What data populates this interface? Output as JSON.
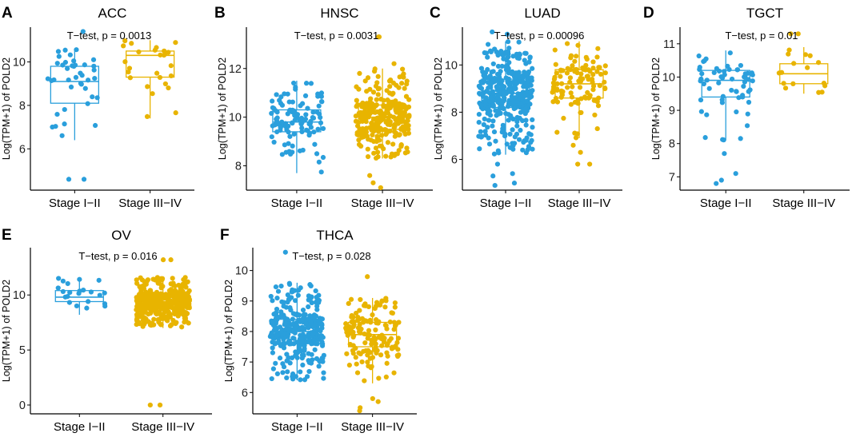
{
  "colors": {
    "stage_early": "#2a9fdc",
    "stage_late": "#e8b400",
    "axis": "#000000"
  },
  "chart_data": [
    {
      "type": "box",
      "panel": "A",
      "title": "ACC",
      "xlabel": "",
      "ylabel": "Log(TPM+1) of POLD2",
      "annotation": "T−test, p = 0.0013",
      "categories": [
        "Stage I−II",
        "Stage III−IV"
      ],
      "ylim": [
        4.1,
        11.6
      ],
      "yticks": [
        6,
        8,
        10
      ],
      "ytick_labels": [
        "6",
        "8",
        "10"
      ],
      "series": [
        {
          "name": "Stage I−II",
          "n": 40,
          "min": 6.4,
          "q1": 8.1,
          "median": 9.1,
          "q3": 9.8,
          "max": 10.6,
          "outliers": [
            4.6,
            4.6,
            11.4
          ]
        },
        {
          "name": "Stage III−IV",
          "n": 26,
          "min": 7.4,
          "q1": 9.3,
          "median": 10.3,
          "q3": 10.5,
          "max": 11.0,
          "outliers": []
        }
      ]
    },
    {
      "type": "box",
      "panel": "B",
      "title": "HNSC",
      "xlabel": "",
      "ylabel": "Log(TPM+1) of POLD2",
      "annotation": "T−test, p = 0.0031",
      "categories": [
        "Stage I−II",
        "Stage III−IV"
      ],
      "ylim": [
        7.0,
        13.7
      ],
      "yticks": [
        8,
        10,
        12
      ],
      "ytick_labels": [
        "8",
        "10",
        "12"
      ],
      "series": [
        {
          "name": "Stage I−II",
          "n": 110,
          "min": 7.7,
          "q1": 9.4,
          "median": 9.8,
          "q3": 10.3,
          "max": 11.5,
          "outliers": []
        },
        {
          "name": "Stage III−IV",
          "n": 300,
          "min": 8.3,
          "q1": 9.5,
          "median": 10.0,
          "q3": 10.5,
          "max": 12.0,
          "outliers": [
            7.3,
            7.1,
            7.6,
            12.2,
            13.3,
            13.3
          ]
        }
      ]
    },
    {
      "type": "box",
      "panel": "C",
      "title": "LUAD",
      "xlabel": "",
      "ylabel": "Log(TPM+1) of POLD2",
      "annotation": "T−test, p = 0.00096",
      "categories": [
        "Stage I−II",
        "Stage III−IV"
      ],
      "ylim": [
        4.7,
        11.6
      ],
      "yticks": [
        6,
        8,
        10
      ],
      "ytick_labels": [
        "6",
        "8",
        "10"
      ],
      "series": [
        {
          "name": "Stage I−II",
          "n": 380,
          "min": 6.2,
          "q1": 8.2,
          "median": 8.8,
          "q3": 9.4,
          "max": 11.0,
          "outliers": [
            4.9,
            5.0,
            5.3,
            5.4,
            5.8,
            11.3,
            11.4
          ]
        },
        {
          "name": "Stage III−IV",
          "n": 110,
          "min": 6.9,
          "q1": 8.6,
          "median": 9.2,
          "q3": 9.8,
          "max": 11.0,
          "outliers": [
            5.8,
            5.8,
            6.3,
            6.6
          ]
        }
      ]
    },
    {
      "type": "box",
      "panel": "D",
      "title": "TGCT",
      "xlabel": "",
      "ylabel": "Log(TPM+1) of POLD2",
      "annotation": "T−test, p = 0.01",
      "categories": [
        "Stage I−II",
        "Stage III−IV"
      ],
      "ylim": [
        6.6,
        11.5
      ],
      "yticks": [
        7,
        8,
        9,
        10,
        11
      ],
      "ytick_labels": [
        "7",
        "8",
        "9",
        "10",
        "11"
      ],
      "series": [
        {
          "name": "Stage I−II",
          "n": 60,
          "min": 8.1,
          "q1": 9.4,
          "median": 9.9,
          "q3": 10.2,
          "max": 10.8,
          "outliers": [
            6.8,
            6.9,
            7.1,
            7.7
          ]
        },
        {
          "name": "Stage III−IV",
          "n": 16,
          "min": 9.5,
          "q1": 9.8,
          "median": 10.1,
          "q3": 10.4,
          "max": 10.9,
          "outliers": [
            11.3,
            11.3
          ]
        }
      ]
    },
    {
      "type": "box",
      "panel": "E",
      "title": "OV",
      "xlabel": "",
      "ylabel": "Log(TPM+1) of POLD2",
      "annotation": "T−test, p = 0.016",
      "categories": [
        "Stage I−II",
        "Stage III−IV"
      ],
      "ylim": [
        -0.8,
        14.3
      ],
      "yticks": [
        0,
        5,
        10
      ],
      "ytick_labels": [
        "0",
        "5",
        "10"
      ],
      "series": [
        {
          "name": "Stage I−II",
          "n": 22,
          "min": 8.2,
          "q1": 9.4,
          "median": 9.8,
          "q3": 10.4,
          "max": 11.6,
          "outliers": []
        },
        {
          "name": "Stage III−IV",
          "n": 400,
          "min": 7.0,
          "q1": 8.8,
          "median": 9.4,
          "q3": 9.9,
          "max": 11.6,
          "outliers": [
            0.0,
            0.0,
            13.2,
            13.2
          ]
        }
      ]
    },
    {
      "type": "box",
      "panel": "F",
      "title": "THCA",
      "xlabel": "",
      "ylabel": "Log(TPM+1) of POLD2",
      "annotation": "T−test, p = 0.028",
      "categories": [
        "Stage I−II",
        "Stage III−IV"
      ],
      "ylim": [
        5.3,
        10.75
      ],
      "yticks": [
        6,
        7,
        8,
        9,
        10
      ],
      "ytick_labels": [
        "6",
        "7",
        "8",
        "9",
        "10"
      ],
      "series": [
        {
          "name": "Stage I−II",
          "n": 330,
          "min": 6.4,
          "q1": 7.6,
          "median": 8.0,
          "q3": 8.4,
          "max": 9.6,
          "outliers": [
            10.6
          ]
        },
        {
          "name": "Stage III−IV",
          "n": 150,
          "min": 6.3,
          "q1": 7.5,
          "median": 7.9,
          "q3": 8.3,
          "max": 9.1,
          "outliers": [
            5.4,
            5.5,
            5.7,
            5.8,
            9.8
          ]
        }
      ]
    }
  ]
}
